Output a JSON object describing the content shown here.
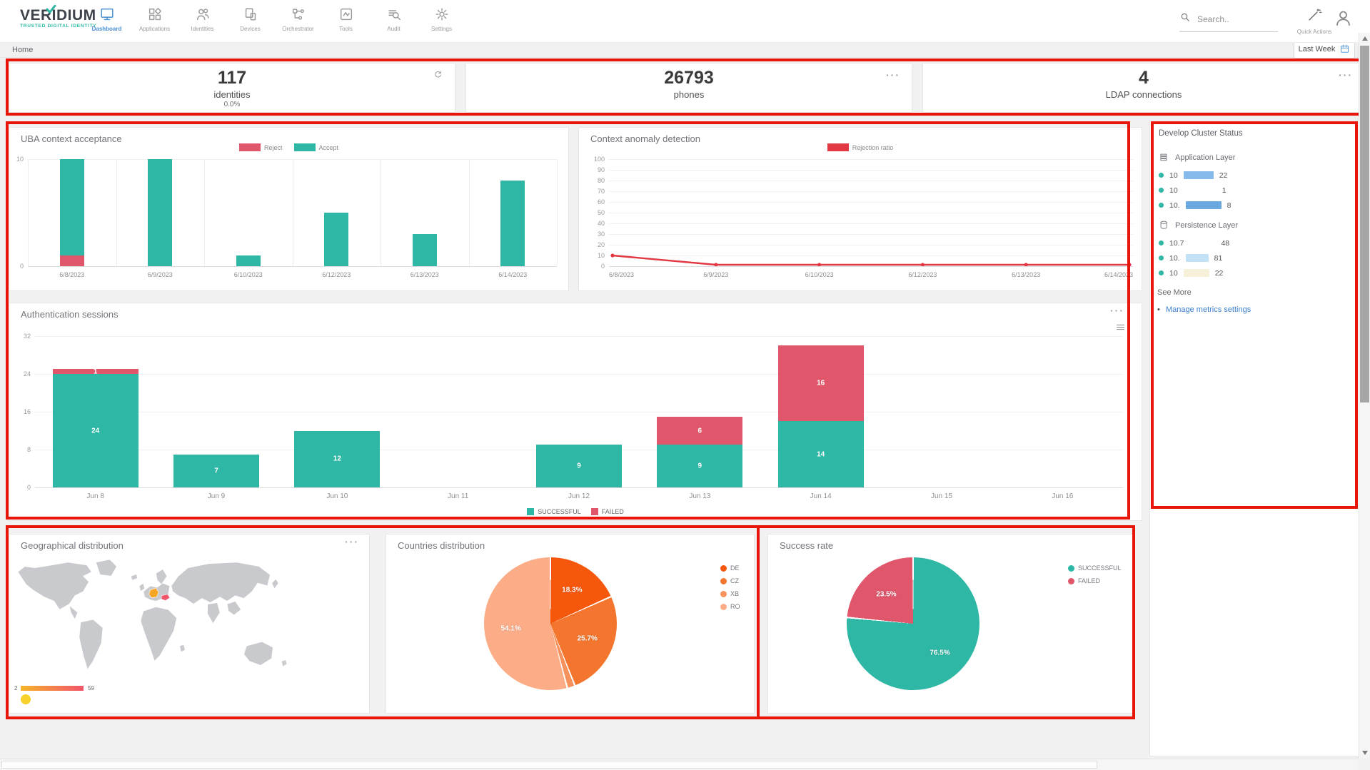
{
  "colors": {
    "teal": "#2eb7a4",
    "coral": "#e0566b",
    "line_red": "#e23843",
    "blue": "#4a8fd3",
    "link_blue": "#3a7fd0",
    "annotation": "#e8150b"
  },
  "nav": {
    "logo_text": "VERIDIUM",
    "logo_tagline": "TRUSTED DIGITAL IDENTITY",
    "items": [
      {
        "label": "Dashboard",
        "icon": "monitor-icon",
        "active": true
      },
      {
        "label": "Applications",
        "icon": "grid-icon",
        "active": false
      },
      {
        "label": "Identities",
        "icon": "people-icon",
        "active": false
      },
      {
        "label": "Devices",
        "icon": "devices-icon",
        "active": false
      },
      {
        "label": "Orchestrator",
        "icon": "flow-icon",
        "active": false
      },
      {
        "label": "Tools",
        "icon": "tools-icon",
        "active": false
      },
      {
        "label": "Audit",
        "icon": "audit-icon",
        "active": false
      },
      {
        "label": "Settings",
        "icon": "gear-icon",
        "active": false
      }
    ],
    "search_placeholder": "Search..",
    "quick_actions_label": "Quick Actions"
  },
  "breadcrumb": "Home",
  "period_button": {
    "label": "Last Week"
  },
  "stat_cards": [
    {
      "value": "117",
      "label": "identities",
      "sub": "0.0%",
      "corner_icon": "refresh-icon"
    },
    {
      "value": "26793",
      "label": "phones",
      "corner_icon": "ellipsis-icon"
    },
    {
      "value": "4",
      "label": "LDAP connections",
      "corner_icon": "ellipsis-icon"
    }
  ],
  "chart_data": [
    {
      "id": "uba",
      "type": "bar",
      "stacked": true,
      "title": "UBA context acceptance",
      "categories": [
        "6/8/2023",
        "6/9/2023",
        "6/10/2023",
        "6/12/2023",
        "6/13/2023",
        "6/14/2023"
      ],
      "series": [
        {
          "name": "Reject",
          "color": "#e0566b",
          "values": [
            1,
            0,
            0,
            0,
            0,
            0
          ]
        },
        {
          "name": "Accept",
          "color": "#2eb7a4",
          "values": [
            9,
            10,
            1,
            5,
            3,
            8
          ]
        }
      ],
      "ylim": [
        0,
        10
      ],
      "yticks": [
        0,
        10
      ],
      "grid": "vertical",
      "legend_position": "top"
    },
    {
      "id": "anomaly",
      "type": "line",
      "title": "Context anomaly detection",
      "categories": [
        "6/8/2023",
        "6/9/2023",
        "6/10/2023",
        "6/12/2023",
        "6/13/2023",
        "6/14/2023"
      ],
      "series": [
        {
          "name": "Rejection ratio",
          "color": "#e23843",
          "values": [
            10,
            1,
            1,
            1,
            1,
            1
          ]
        }
      ],
      "ylim": [
        0,
        100
      ],
      "yticks": [
        0,
        10,
        20,
        30,
        40,
        50,
        60,
        70,
        80,
        90,
        100
      ],
      "grid": "horizontal",
      "legend_position": "top"
    },
    {
      "id": "auth",
      "type": "bar",
      "stacked": true,
      "title": "Authentication sessions",
      "categories": [
        "Jun 8",
        "Jun 9",
        "Jun 10",
        "Jun 11",
        "Jun 12",
        "Jun 13",
        "Jun 14",
        "Jun 15",
        "Jun 16"
      ],
      "series": [
        {
          "name": "SUCCESSFUL",
          "color": "#2eb7a4",
          "values": [
            24,
            7,
            12,
            0,
            9,
            9,
            14,
            0,
            0
          ]
        },
        {
          "name": "FAILED",
          "color": "#e0566b",
          "values": [
            1,
            0,
            0,
            0,
            0,
            6,
            16,
            0,
            0
          ]
        }
      ],
      "ylim": [
        0,
        32
      ],
      "yticks": [
        0,
        8,
        16,
        24,
        32
      ],
      "grid": "horizontal",
      "legend_position": "bottom",
      "show_values": true
    },
    {
      "id": "countries",
      "type": "pie",
      "title": "Countries distribution",
      "slices": [
        {
          "label": "DE",
          "value": 18.3,
          "color": "#f5570c",
          "show_pct": true
        },
        {
          "label": "CZ",
          "value": 25.7,
          "color": "#f4762e",
          "show_pct": true
        },
        {
          "label": "XB",
          "value": 1.9,
          "color": "#f8925c",
          "show_pct": false
        },
        {
          "label": "RO",
          "value": 54.1,
          "color": "#fcad87",
          "show_pct": true
        }
      ],
      "legend_position": "right"
    },
    {
      "id": "success",
      "type": "pie",
      "title": "Success rate",
      "slices": [
        {
          "label": "SUCCESSFUL",
          "value": 76.5,
          "color": "#2eb7a4",
          "show_pct": true
        },
        {
          "label": "FAILED",
          "value": 23.5,
          "color": "#e0566b",
          "show_pct": true
        }
      ],
      "legend_position": "right"
    },
    {
      "id": "geo",
      "type": "map",
      "title": "Geographical distribution",
      "legend_min": "2",
      "legend_max": "59",
      "gradient": [
        "#f7b32a",
        "#f2546b"
      ],
      "highlights": [
        {
          "code": "DE",
          "color": "#f5a623"
        },
        {
          "code": "RO",
          "color": "#f25468"
        }
      ],
      "marker_color": "#f8d22a"
    }
  ],
  "cluster_panel": {
    "title": "Develop Cluster Status",
    "dot_color": "#2eb7a4",
    "sections": [
      {
        "label": "Application Layer",
        "icon": "layers-icon",
        "rows": [
          {
            "pre": "10",
            "mask_w": 42,
            "mask_color": "#85b9ec",
            "suf": "22"
          },
          {
            "pre": "10",
            "mask_w": 46,
            "mask_color": "transparent",
            "suf": "1"
          },
          {
            "pre": "10.",
            "mask_w": 50,
            "mask_color": "#6aa9e0",
            "suf": "8"
          }
        ]
      },
      {
        "label": "Persistence Layer",
        "icon": "database-icon",
        "rows": [
          {
            "pre": "10.7",
            "mask_w": 36,
            "mask_color": "transparent",
            "suf": "48"
          },
          {
            "pre": "10.",
            "mask_w": 32,
            "mask_color": "#c3e2f7",
            "suf": "81"
          },
          {
            "pre": "10",
            "mask_w": 36,
            "mask_color": "#f6f1d8",
            "suf": "22"
          }
        ]
      }
    ],
    "see_more": "See More",
    "link_label": "Manage metrics settings"
  }
}
